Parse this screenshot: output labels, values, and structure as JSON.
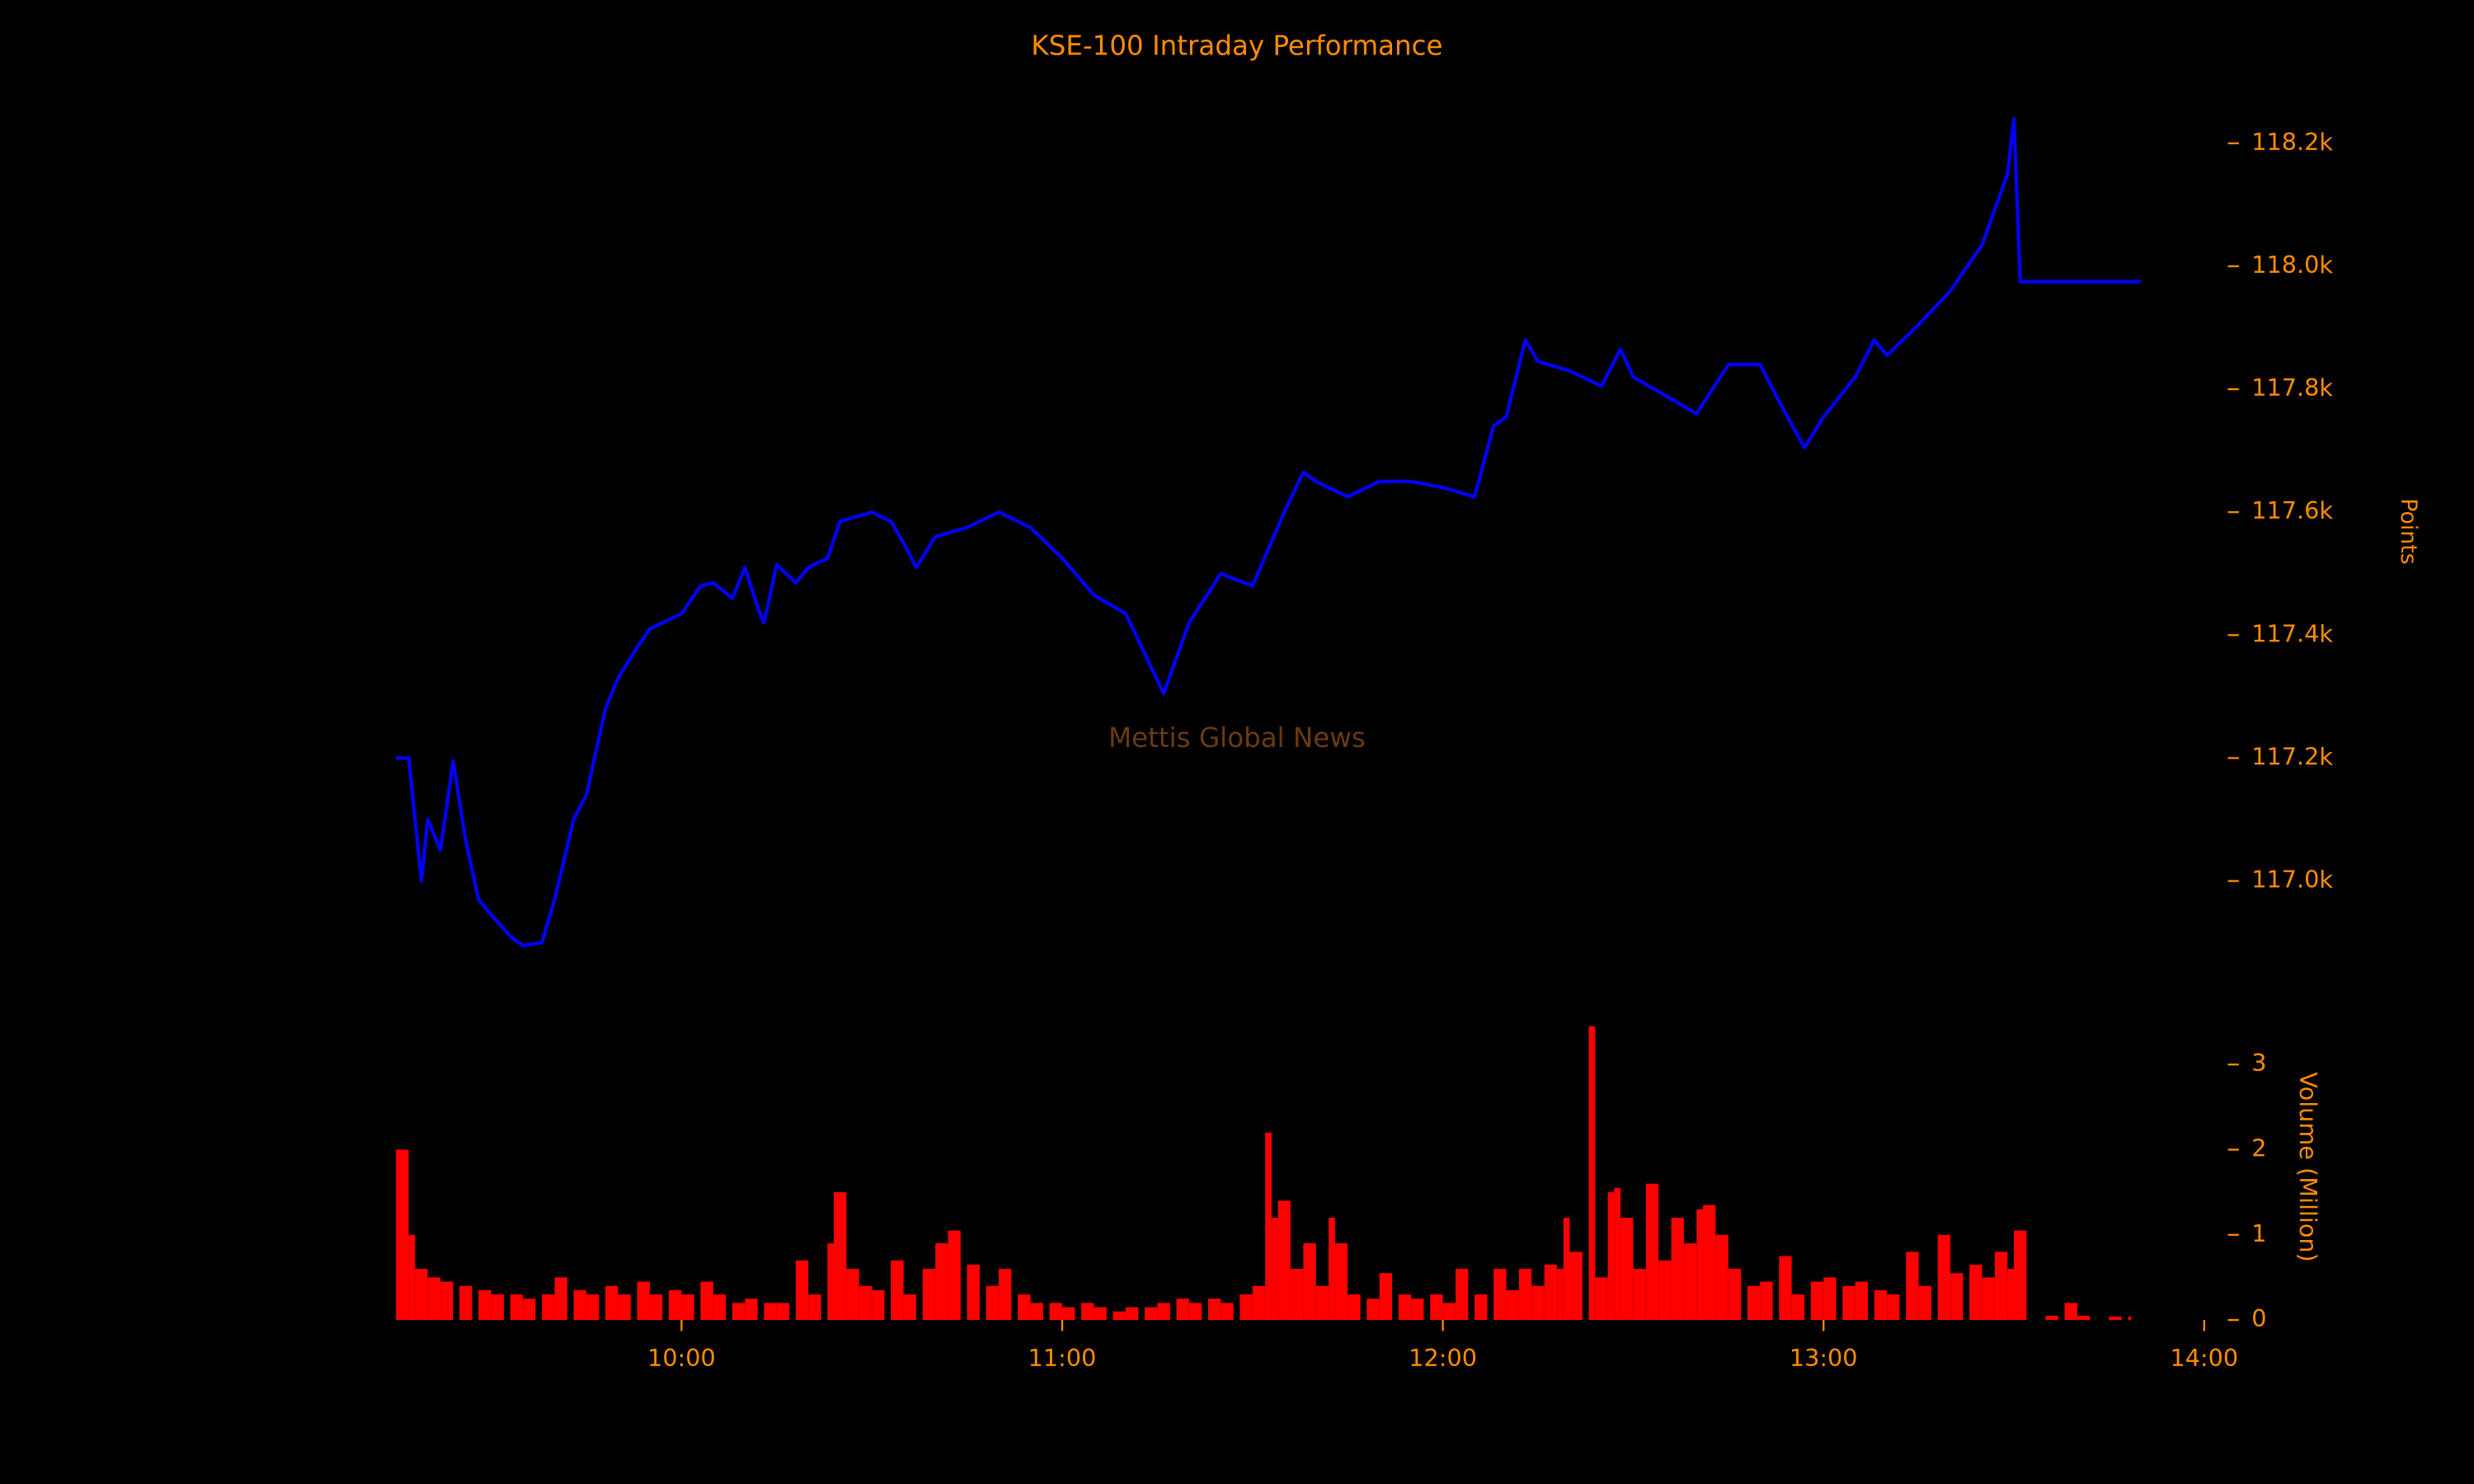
{
  "chart_data": [
    {
      "type": "line",
      "title": "KSE-100 Intraday Performance",
      "annotation": "Mettis Global News",
      "ylabel": "Points",
      "color": "#0000ff",
      "xlim": [
        "09:15",
        "14:00"
      ],
      "x": [
        "09:15",
        "09:17",
        "09:19",
        "09:20",
        "09:22",
        "09:24",
        "09:26",
        "09:28",
        "09:30",
        "09:33",
        "09:35",
        "09:38",
        "09:40",
        "09:43",
        "09:45",
        "09:48",
        "09:50",
        "09:53",
        "09:55",
        "10:00",
        "10:03",
        "10:05",
        "10:08",
        "10:10",
        "10:12",
        "10:13",
        "10:15",
        "10:18",
        "10:20",
        "10:23",
        "10:25",
        "10:30",
        "10:33",
        "10:35",
        "10:37",
        "10:40",
        "10:45",
        "10:50",
        "10:55",
        "11:00",
        "11:05",
        "11:10",
        "11:13",
        "11:16",
        "11:20",
        "11:25",
        "11:30",
        "11:35",
        "11:38",
        "11:40",
        "11:45",
        "11:50",
        "11:55",
        "12:00",
        "12:05",
        "12:08",
        "12:10",
        "12:13",
        "12:15",
        "12:20",
        "12:25",
        "12:28",
        "12:30",
        "12:35",
        "12:40",
        "12:45",
        "12:50",
        "12:53",
        "12:57",
        "13:00",
        "13:05",
        "13:08",
        "13:10",
        "13:15",
        "13:20",
        "13:25",
        "13:29",
        "13:30",
        "13:31",
        "13:50"
      ],
      "values": [
        117200,
        117200,
        117000,
        117100,
        117050,
        117195,
        117065,
        116970,
        116945,
        116910,
        116895,
        116900,
        116970,
        117100,
        117140,
        117280,
        117330,
        117380,
        117410,
        117435,
        117480,
        117485,
        117460,
        117510,
        117445,
        117420,
        117515,
        117485,
        117510,
        117525,
        117585,
        117600,
        117585,
        117550,
        117510,
        117560,
        117575,
        117600,
        117575,
        117525,
        117465,
        117435,
        117370,
        117305,
        117420,
        117500,
        117480,
        117600,
        117665,
        117650,
        117625,
        117650,
        117650,
        117640,
        117625,
        117740,
        117755,
        117880,
        117845,
        117830,
        117805,
        117865,
        117820,
        117790,
        117760,
        117840,
        117840,
        117780,
        117705,
        117755,
        117820,
        117880,
        117855,
        117905,
        117960,
        118035,
        118150,
        118240,
        117975,
        117975
      ],
      "ylim": [
        116840,
        118310
      ],
      "yticks": [
        {
          "value": 117000,
          "label": "117.0k"
        },
        {
          "value": 117200,
          "label": "117.2k"
        },
        {
          "value": 117400,
          "label": "117.4k"
        },
        {
          "value": 117600,
          "label": "117.6k"
        },
        {
          "value": 117800,
          "label": "117.8k"
        },
        {
          "value": 118000,
          "label": "118.0k"
        },
        {
          "value": 118200,
          "label": "118.2k"
        }
      ]
    },
    {
      "type": "bar",
      "ylabel": "Volume (Million)",
      "color": "#ff0000",
      "xlim": [
        "09:15",
        "14:00"
      ],
      "xticks": [
        "10:00",
        "11:00",
        "12:00",
        "13:00",
        "14:00"
      ],
      "x": [
        "09:15",
        "09:17",
        "09:18",
        "09:20",
        "09:22",
        "09:25",
        "09:28",
        "09:30",
        "09:33",
        "09:35",
        "09:38",
        "09:40",
        "09:43",
        "09:45",
        "09:48",
        "09:50",
        "09:53",
        "09:55",
        "09:58",
        "10:00",
        "10:03",
        "10:05",
        "10:08",
        "10:10",
        "10:13",
        "10:15",
        "10:18",
        "10:20",
        "10:23",
        "10:24",
        "10:26",
        "10:28",
        "10:30",
        "10:33",
        "10:35",
        "10:38",
        "10:40",
        "10:42",
        "10:45",
        "10:48",
        "10:50",
        "10:53",
        "10:55",
        "10:58",
        "11:00",
        "11:03",
        "11:05",
        "11:08",
        "11:10",
        "11:13",
        "11:15",
        "11:18",
        "11:20",
        "11:23",
        "11:25",
        "11:28",
        "11:30",
        "11:32",
        "11:33",
        "11:34",
        "11:36",
        "11:38",
        "11:40",
        "11:42",
        "11:43",
        "11:45",
        "11:48",
        "11:50",
        "11:53",
        "11:55",
        "11:58",
        "12:00",
        "12:02",
        "12:05",
        "12:08",
        "12:10",
        "12:12",
        "12:14",
        "12:16",
        "12:18",
        "12:19",
        "12:20",
        "12:23",
        "12:24",
        "12:26",
        "12:27",
        "12:28",
        "12:30",
        "12:32",
        "12:34",
        "12:36",
        "12:38",
        "12:40",
        "12:41",
        "12:43",
        "12:45",
        "12:48",
        "12:50",
        "12:53",
        "12:55",
        "12:58",
        "13:00",
        "13:03",
        "13:05",
        "13:08",
        "13:10",
        "13:13",
        "13:15",
        "13:18",
        "13:20",
        "13:23",
        "13:25",
        "13:27",
        "13:29",
        "13:30",
        "13:35",
        "13:38",
        "13:40",
        "13:45",
        "13:48"
      ],
      "values": [
        2.0,
        1.0,
        0.6,
        0.5,
        0.45,
        0.4,
        0.35,
        0.3,
        0.3,
        0.25,
        0.3,
        0.5,
        0.35,
        0.3,
        0.4,
        0.3,
        0.45,
        0.3,
        0.35,
        0.3,
        0.45,
        0.3,
        0.2,
        0.25,
        0.2,
        0.2,
        0.7,
        0.3,
        0.9,
        1.5,
        0.6,
        0.4,
        0.35,
        0.7,
        0.3,
        0.6,
        0.9,
        1.05,
        0.65,
        0.4,
        0.6,
        0.3,
        0.2,
        0.2,
        0.15,
        0.2,
        0.15,
        0.1,
        0.15,
        0.15,
        0.2,
        0.25,
        0.2,
        0.25,
        0.2,
        0.3,
        0.4,
        2.2,
        1.2,
        1.4,
        0.6,
        0.9,
        0.4,
        1.2,
        0.9,
        0.3,
        0.25,
        0.55,
        0.3,
        0.25,
        0.3,
        0.2,
        0.6,
        0.3,
        0.6,
        0.35,
        0.6,
        0.4,
        0.65,
        0.6,
        1.2,
        0.8,
        3.45,
        0.5,
        1.5,
        1.55,
        1.2,
        0.6,
        1.6,
        0.7,
        1.2,
        0.9,
        1.3,
        1.35,
        1.0,
        0.6,
        0.4,
        0.45,
        0.75,
        0.3,
        0.45,
        0.5,
        0.4,
        0.45,
        0.35,
        0.3,
        0.8,
        0.4,
        1.0,
        0.55,
        0.65,
        0.5,
        0.8,
        0.6,
        1.05,
        0.05,
        0.2,
        0.05,
        0.04,
        0.04
      ],
      "ylim": [
        0,
        3.5
      ],
      "yticks": [
        0,
        1,
        2,
        3
      ]
    }
  ]
}
